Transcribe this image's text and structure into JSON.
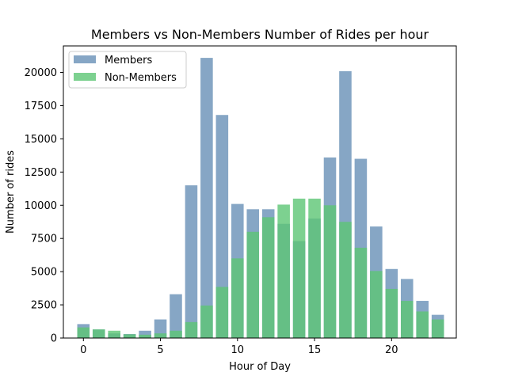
{
  "chart_data": {
    "type": "bar",
    "title": "Members vs Non-Members Number of Rides per hour",
    "xlabel": "Hour of Day",
    "ylabel": "Number of rides",
    "x": [
      0,
      1,
      2,
      3,
      4,
      5,
      6,
      7,
      8,
      9,
      10,
      11,
      12,
      13,
      14,
      15,
      16,
      17,
      18,
      19,
      20,
      21,
      22,
      23
    ],
    "xlim": [
      -1.3,
      24.2
    ],
    "ylim": [
      0,
      22000
    ],
    "xticks": [
      0,
      5,
      10,
      15,
      20
    ],
    "yticks": [
      0,
      2500,
      5000,
      7500,
      10000,
      12500,
      15000,
      17500,
      20000
    ],
    "grid": false,
    "legend_position": "top-left",
    "overlay": true,
    "series": [
      {
        "name": "Members",
        "color": "#7196bb",
        "values": [
          1050,
          650,
          350,
          300,
          550,
          1400,
          3300,
          11500,
          21100,
          16800,
          10100,
          9700,
          9700,
          8600,
          7300,
          9000,
          13600,
          20100,
          13500,
          8400,
          5200,
          4450,
          2800,
          1750
        ]
      },
      {
        "name": "Non-Members",
        "color": "#5cc674",
        "values": [
          800,
          650,
          550,
          280,
          250,
          350,
          550,
          1200,
          2450,
          3850,
          6000,
          8000,
          9100,
          10050,
          10500,
          10500,
          10000,
          8750,
          6800,
          5050,
          3700,
          2800,
          2000,
          1400
        ]
      }
    ]
  }
}
